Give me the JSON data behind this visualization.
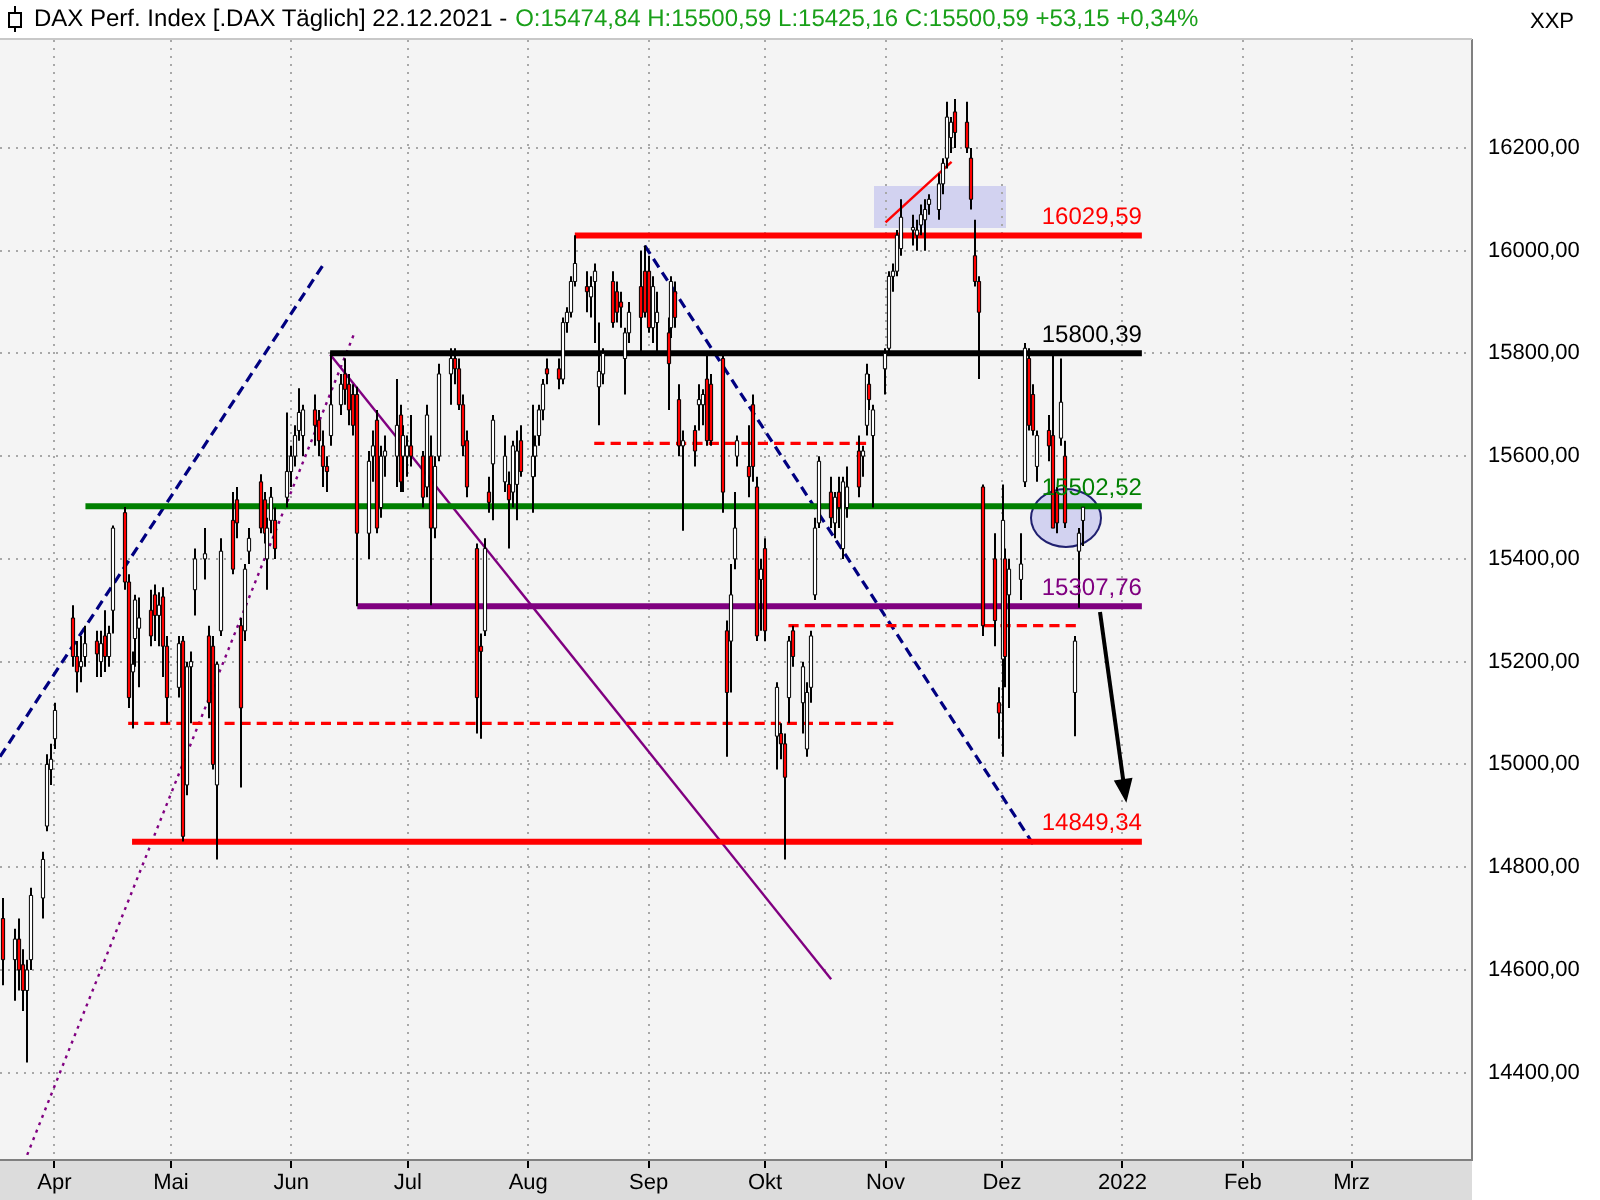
{
  "chart_data": {
    "type": "candlestick",
    "title": "DAX Perf. Index [.DAX Täglich] 22.12.2021 -",
    "subtitle": "O:15474,84 H:15500,59 L:15425,16 C:15500,59 +53,15 +0,34%",
    "ylabel": "XXP",
    "x": [
      "2021-03-19",
      "2021-03-22",
      "2021-03-23",
      "2021-03-24",
      "2021-03-25",
      "2021-03-26",
      "2021-03-29",
      "2021-03-30",
      "2021-03-31",
      "2021-04-01",
      "2021-04-06",
      "2021-04-07",
      "2021-04-08",
      "2021-04-09",
      "2021-04-12",
      "2021-04-13",
      "2021-04-14",
      "2021-04-15",
      "2021-04-16",
      "2021-04-19",
      "2021-04-20",
      "2021-04-21",
      "2021-04-22",
      "2021-04-23",
      "2021-04-26",
      "2021-04-27",
      "2021-04-28",
      "2021-04-29",
      "2021-04-30",
      "2021-05-03",
      "2021-05-04",
      "2021-05-05",
      "2021-05-06",
      "2021-05-07",
      "2021-05-10",
      "2021-05-11",
      "2021-05-12",
      "2021-05-13",
      "2021-05-14",
      "2021-05-17",
      "2021-05-18",
      "2021-05-19",
      "2021-05-20",
      "2021-05-21",
      "2021-05-24",
      "2021-05-25",
      "2021-05-26",
      "2021-05-27",
      "2021-05-28",
      "2021-05-31",
      "2021-06-01",
      "2021-06-02",
      "2021-06-03",
      "2021-06-04",
      "2021-06-07",
      "2021-06-08",
      "2021-06-09",
      "2021-06-10",
      "2021-06-11",
      "2021-06-14",
      "2021-06-15",
      "2021-06-16",
      "2021-06-17",
      "2021-06-18",
      "2021-06-21",
      "2021-06-22",
      "2021-06-23",
      "2021-06-24",
      "2021-06-25",
      "2021-06-28",
      "2021-06-29",
      "2021-06-30",
      "2021-07-01",
      "2021-07-02",
      "2021-07-05",
      "2021-07-06",
      "2021-07-07",
      "2021-07-08",
      "2021-07-09",
      "2021-07-12",
      "2021-07-13",
      "2021-07-14",
      "2021-07-15",
      "2021-07-16",
      "2021-07-19",
      "2021-07-20",
      "2021-07-21",
      "2021-07-22",
      "2021-07-23",
      "2021-07-26",
      "2021-07-27",
      "2021-07-28",
      "2021-07-29",
      "2021-07-30",
      "2021-08-02",
      "2021-08-03",
      "2021-08-04",
      "2021-08-05",
      "2021-08-06",
      "2021-08-09",
      "2021-08-10",
      "2021-08-11",
      "2021-08-12",
      "2021-08-13",
      "2021-08-16",
      "2021-08-17",
      "2021-08-18",
      "2021-08-19",
      "2021-08-20",
      "2021-08-23",
      "2021-08-24",
      "2021-08-25",
      "2021-08-26",
      "2021-08-27",
      "2021-08-30",
      "2021-08-31",
      "2021-09-01",
      "2021-09-02",
      "2021-09-03",
      "2021-09-06",
      "2021-09-07",
      "2021-09-08",
      "2021-09-09",
      "2021-09-10",
      "2021-09-13",
      "2021-09-14",
      "2021-09-15",
      "2021-09-16",
      "2021-09-17",
      "2021-09-20",
      "2021-09-21",
      "2021-09-22",
      "2021-09-23",
      "2021-09-24",
      "2021-09-27",
      "2021-09-28",
      "2021-09-29",
      "2021-09-30",
      "2021-10-01",
      "2021-10-04",
      "2021-10-05",
      "2021-10-06",
      "2021-10-07",
      "2021-10-08",
      "2021-10-11",
      "2021-10-12",
      "2021-10-13",
      "2021-10-14",
      "2021-10-15",
      "2021-10-18",
      "2021-10-19",
      "2021-10-20",
      "2021-10-21",
      "2021-10-22",
      "2021-10-25",
      "2021-10-26",
      "2021-10-27",
      "2021-10-28",
      "2021-10-29",
      "2021-11-01",
      "2021-11-02",
      "2021-11-03",
      "2021-11-04",
      "2021-11-05",
      "2021-11-08",
      "2021-11-09",
      "2021-11-10",
      "2021-11-11",
      "2021-11-12",
      "2021-11-15",
      "2021-11-16",
      "2021-11-17",
      "2021-11-18",
      "2021-11-19",
      "2021-11-22",
      "2021-11-23",
      "2021-11-24",
      "2021-11-25",
      "2021-11-26",
      "2021-11-29",
      "2021-11-30",
      "2021-12-01",
      "2021-12-02",
      "2021-12-03",
      "2021-12-06",
      "2021-12-07",
      "2021-12-08",
      "2021-12-09",
      "2021-12-10",
      "2021-12-13",
      "2021-12-14",
      "2021-12-15",
      "2021-12-16",
      "2021-12-17",
      "2021-12-20",
      "2021-12-21",
      "2021-12-22"
    ],
    "ohlc": [
      [
        14700,
        14740,
        14570,
        14620
      ],
      [
        14620,
        14680,
        14540,
        14660
      ],
      [
        14660,
        14700,
        14560,
        14600
      ],
      [
        14610,
        14640,
        14520,
        14560
      ],
      [
        14560,
        14620,
        14420,
        14600
      ],
      [
        14620,
        14760,
        14600,
        14745
      ],
      [
        14740,
        14830,
        14700,
        14815
      ],
      [
        14880,
        15020,
        14870,
        15000
      ],
      [
        14990,
        15040,
        14960,
        15010
      ],
      [
        15050,
        15120,
        15030,
        15105
      ],
      [
        15285,
        15310,
        15190,
        15210
      ],
      [
        15210,
        15240,
        15140,
        15180
      ],
      [
        15190,
        15250,
        15160,
        15200
      ],
      [
        15210,
        15270,
        15190,
        15235
      ],
      [
        15240,
        15260,
        15170,
        15215
      ],
      [
        15200,
        15260,
        15170,
        15235
      ],
      [
        15250,
        15300,
        15180,
        15210
      ],
      [
        15210,
        15270,
        15190,
        15255
      ],
      [
        15300,
        15465,
        15255,
        15460
      ],
      [
        15490,
        15501,
        15340,
        15355
      ],
      [
        15355,
        15370,
        15110,
        15130
      ],
      [
        15180,
        15220,
        15070,
        15195
      ],
      [
        15245,
        15330,
        15190,
        15320
      ],
      [
        15265,
        15325,
        15150,
        15285
      ],
      [
        15300,
        15340,
        15230,
        15250
      ],
      [
        15330,
        15350,
        15240,
        15290
      ],
      [
        15290,
        15335,
        15230,
        15310
      ],
      [
        15326,
        15345,
        15170,
        15230
      ],
      [
        15230,
        15250,
        15080,
        15130
      ],
      [
        15150,
        15250,
        15130,
        15235
      ],
      [
        15240,
        15250,
        14850,
        14860
      ],
      [
        14960,
        15200,
        14940,
        15190
      ],
      [
        15190,
        15220,
        15080,
        15200
      ],
      [
        15340,
        15420,
        15290,
        15400
      ],
      [
        15400,
        15460,
        15360,
        15410
      ],
      [
        15250,
        15270,
        15090,
        15120
      ],
      [
        15230,
        15250,
        14990,
        15000
      ],
      [
        14960,
        15200,
        14815,
        15195
      ],
      [
        15260,
        15440,
        15250,
        15415
      ],
      [
        15475,
        15530,
        15370,
        15380
      ],
      [
        15515,
        15540,
        15440,
        15470
      ],
      [
        15270,
        15285,
        14955,
        15110
      ],
      [
        15260,
        15390,
        15240,
        15380
      ],
      [
        15415,
        15460,
        15390,
        15440
      ],
      [
        15550,
        15565,
        15450,
        15460
      ],
      [
        15515,
        15530,
        15430,
        15450
      ],
      [
        15400,
        15480,
        15340,
        15460
      ],
      [
        15475,
        15540,
        15450,
        15520
      ],
      [
        15475,
        15500,
        15400,
        15420
      ],
      [
        15520,
        15685,
        15500,
        15570
      ],
      [
        15570,
        15620,
        15540,
        15600
      ],
      [
        15600,
        15660,
        15580,
        15640
      ],
      [
        15650,
        15732,
        15630,
        15685
      ],
      [
        15640,
        15700,
        15600,
        15690
      ],
      [
        15690,
        15720,
        15620,
        15660
      ],
      [
        15670,
        15690,
        15600,
        15630
      ],
      [
        15620,
        15650,
        15540,
        15580
      ],
      [
        15580,
        15600,
        15530,
        15570
      ],
      [
        15640,
        15803,
        15620,
        15700
      ],
      [
        15700,
        15760,
        15680,
        15740
      ],
      [
        15760,
        15790,
        15700,
        15730
      ],
      [
        15740,
        15760,
        15660,
        15690
      ],
      [
        15720,
        15740,
        15640,
        15660
      ],
      [
        15720,
        15735,
        15308,
        15450
      ],
      [
        15450,
        15610,
        15400,
        15590
      ],
      [
        15600,
        15650,
        15550,
        15620
      ],
      [
        15670,
        15690,
        15450,
        15460
      ],
      [
        15500,
        15620,
        15480,
        15600
      ],
      [
        15600,
        15640,
        15560,
        15610
      ],
      [
        15600,
        15750,
        15540,
        15660
      ],
      [
        15680,
        15700,
        15530,
        15550
      ],
      [
        15600,
        15660,
        15530,
        15640
      ],
      [
        15600,
        15640,
        15560,
        15620
      ],
      [
        15620,
        15680,
        15580,
        15600
      ],
      [
        15600,
        15610,
        15500,
        15520
      ],
      [
        15540,
        15700,
        15520,
        15680
      ],
      [
        15600,
        15640,
        15310,
        15460
      ],
      [
        15460,
        15600,
        15440,
        15580
      ],
      [
        15600,
        15780,
        15590,
        15760
      ],
      [
        15760,
        15810,
        15700,
        15790
      ],
      [
        15790,
        15810,
        15740,
        15770
      ],
      [
        15770,
        15790,
        15690,
        15700
      ],
      [
        15700,
        15720,
        15600,
        15620
      ],
      [
        15630,
        15650,
        15520,
        15540
      ],
      [
        15420,
        15430,
        15060,
        15130
      ],
      [
        15230,
        15255,
        15050,
        15220
      ],
      [
        15260,
        15440,
        15250,
        15420
      ],
      [
        15530,
        15560,
        15490,
        15510
      ],
      [
        15585,
        15680,
        15475,
        15670
      ],
      [
        15550,
        15640,
        15530,
        15600
      ],
      [
        15545,
        15570,
        15420,
        15515
      ],
      [
        15530,
        15630,
        15500,
        15620
      ],
      [
        15545,
        15650,
        15475,
        15610
      ],
      [
        15630,
        15660,
        15560,
        15570
      ],
      [
        15560,
        15700,
        15490,
        15600
      ],
      [
        15600,
        15640,
        15560,
        15620
      ],
      [
        15640,
        15700,
        15620,
        15690
      ],
      [
        15690,
        15750,
        15670,
        15740
      ],
      [
        15770,
        15790,
        15740,
        15760
      ],
      [
        15770,
        15790,
        15730,
        15750
      ],
      [
        15750,
        15870,
        15740,
        15860
      ],
      [
        15860,
        15890,
        15840,
        15880
      ],
      [
        15880,
        15950,
        15870,
        15940
      ],
      [
        15940,
        16030,
        15930,
        15975
      ],
      [
        15930,
        15960,
        15880,
        15920
      ],
      [
        15910,
        15950,
        15870,
        15930
      ],
      [
        15940,
        15975,
        15820,
        15960
      ],
      [
        15735,
        15860,
        15660,
        15765
      ],
      [
        15760,
        15810,
        15740,
        15800
      ],
      [
        15940,
        15960,
        15850,
        15860
      ],
      [
        15920,
        15940,
        15860,
        15880
      ],
      [
        15900,
        15920,
        15850,
        15890
      ],
      [
        15790,
        15850,
        15720,
        15840
      ],
      [
        15840,
        15900,
        15820,
        15880
      ],
      [
        15930,
        16000,
        15800,
        15870
      ],
      [
        15960,
        16010,
        15870,
        15880
      ],
      [
        15960,
        15990,
        15840,
        15850
      ],
      [
        15850,
        15950,
        15820,
        15930
      ],
      [
        15860,
        15920,
        15800,
        15880
      ],
      [
        15840,
        15870,
        15690,
        15780
      ],
      [
        15850,
        15950,
        15830,
        15940
      ],
      [
        15920,
        15940,
        15850,
        15870
      ],
      [
        15710,
        15740,
        15600,
        15620
      ],
      [
        15620,
        15650,
        15455,
        15630
      ],
      [
        15650,
        15660,
        15580,
        15610
      ],
      [
        15700,
        15740,
        15650,
        15710
      ],
      [
        15700,
        15730,
        15660,
        15720
      ],
      [
        15750,
        15800,
        15620,
        15630
      ],
      [
        15740,
        15760,
        15620,
        15630
      ],
      [
        15790,
        15800,
        15490,
        15530
      ],
      [
        15260,
        15280,
        15015,
        15140
      ],
      [
        15240,
        15390,
        15140,
        15330
      ],
      [
        15400,
        15530,
        15380,
        15460
      ],
      [
        15600,
        15640,
        15580,
        15630
      ],
      [
        15580,
        15660,
        15520,
        15560
      ],
      [
        15700,
        15720,
        15550,
        15580
      ],
      [
        15540,
        15560,
        15240,
        15250
      ],
      [
        15360,
        15400,
        15260,
        15380
      ],
      [
        15420,
        15440,
        15240,
        15260
      ],
      [
        15055,
        15160,
        14990,
        15150
      ],
      [
        15060,
        15080,
        15010,
        15040
      ],
      [
        15040,
        15060,
        14815,
        14975
      ],
      [
        15130,
        15250,
        15080,
        15240
      ],
      [
        15260,
        15270,
        15190,
        15210
      ],
      [
        15120,
        15200,
        15060,
        15190
      ],
      [
        15030,
        15160,
        15015,
        15140
      ],
      [
        15150,
        15260,
        15120,
        15250
      ],
      [
        15330,
        15480,
        15320,
        15460
      ],
      [
        15470,
        15600,
        15460,
        15590
      ],
      [
        15530,
        15560,
        15460,
        15480
      ],
      [
        15470,
        15530,
        15440,
        15520
      ],
      [
        15530,
        15560,
        15460,
        15500
      ],
      [
        15420,
        15560,
        15400,
        15550
      ],
      [
        15500,
        15580,
        15480,
        15540
      ],
      [
        15610,
        15640,
        15520,
        15540
      ],
      [
        15600,
        15620,
        15560,
        15610
      ],
      [
        15660,
        15780,
        15640,
        15760
      ],
      [
        15740,
        15760,
        15690,
        15710
      ],
      [
        15640,
        15700,
        15500,
        15690
      ],
      [
        15770,
        15810,
        15720,
        15800
      ],
      [
        15810,
        15960,
        15800,
        15950
      ],
      [
        15950,
        15975,
        15920,
        15960
      ],
      [
        15960,
        16040,
        15950,
        16030
      ],
      [
        16004,
        16100,
        15990,
        16065
      ],
      [
        16040,
        16070,
        16010,
        16045
      ],
      [
        16030,
        16060,
        16000,
        16040
      ],
      [
        16050,
        16090,
        16030,
        16070
      ],
      [
        16060,
        16100,
        16000,
        16080
      ],
      [
        16090,
        16110,
        16070,
        16100
      ],
      [
        16080,
        16150,
        16060,
        16130
      ],
      [
        16130,
        16180,
        16110,
        16170
      ],
      [
        16180,
        16290,
        16160,
        16260
      ],
      [
        16220,
        16260,
        16190,
        16250
      ],
      [
        16270,
        16295,
        16200,
        16230
      ],
      [
        16250,
        16290,
        16190,
        16200
      ],
      [
        16180,
        16200,
        16080,
        16100
      ],
      [
        15990,
        16060,
        15930,
        15940
      ],
      [
        15940,
        15950,
        15750,
        15880
      ],
      [
        15540,
        15545,
        15250,
        15270
      ],
      [
        15400,
        15450,
        15230,
        15280
      ],
      [
        15120,
        15150,
        15050,
        15100
      ],
      [
        15205,
        15545,
        15015,
        15475
      ],
      [
        15400,
        15420,
        15150,
        15210
      ],
      [
        15330,
        15400,
        15110,
        15380
      ],
      [
        15360,
        15450,
        15320,
        15390
      ],
      [
        15550,
        15820,
        15540,
        15810
      ],
      [
        15790,
        15810,
        15650,
        15660
      ],
      [
        15720,
        15740,
        15640,
        15650
      ],
      [
        15580,
        15650,
        15550,
        15640
      ],
      [
        15650,
        15680,
        15590,
        15620
      ],
      [
        15640,
        15800,
        15460,
        15460
      ],
      [
        15530,
        15540,
        15450,
        15470
      ],
      [
        15635,
        15790,
        15620,
        15705
      ],
      [
        15600,
        15630,
        15460,
        15470
      ],
      [
        15140,
        15250,
        15055,
        15240
      ],
      [
        15415,
        15460,
        15305,
        15450
      ],
      [
        15474.84,
        15500.59,
        15425.16,
        15500.59
      ]
    ],
    "series": [
      {
        "type": "line",
        "x": [
          "2021-08-13",
          "2022-01-06"
        ],
        "values": [
          16029.59,
          16029.59
        ],
        "color": "#ff0000",
        "value_labels": [
          null,
          "16029,59"
        ]
      },
      {
        "type": "line",
        "x": [
          "2021-06-11",
          "2022-01-06"
        ],
        "values": [
          15800.39,
          15800.39
        ],
        "color": "#000000",
        "value_labels": [
          null,
          "15800,39"
        ]
      },
      {
        "type": "line",
        "x": [
          "2021-04-09",
          "2022-01-06"
        ],
        "values": [
          15502.52,
          15502.52
        ],
        "color": "#008000",
        "value_labels": [
          null,
          "15502,52"
        ]
      },
      {
        "type": "line",
        "x": [
          "2021-06-18",
          "2022-01-06"
        ],
        "values": [
          15307.76,
          15307.76
        ],
        "color": "#800080",
        "value_labels": [
          null,
          "15307,76"
        ]
      },
      {
        "type": "line",
        "x": [
          "2021-04-21",
          "2022-01-06"
        ],
        "values": [
          14849.34,
          14849.34
        ],
        "color": "#ff0000",
        "value_labels": [
          null,
          "14849,34"
        ]
      },
      {
        "type": "line",
        "x": [
          "2021-04-20",
          "2021-11-03"
        ],
        "values": [
          15080,
          15080
        ],
        "color": "#ff0000",
        "line_style": "dashed"
      },
      {
        "type": "line",
        "x": [
          "2021-08-18",
          "2021-10-27"
        ],
        "values": [
          15625,
          15625
        ],
        "color": "#ff0000",
        "line_style": "dashed"
      },
      {
        "type": "line",
        "x": [
          "2021-10-07",
          "2021-12-20"
        ],
        "values": [
          15270,
          15270
        ],
        "color": "#ff0000",
        "line_style": "dashed"
      },
      {
        "type": "line",
        "x": [
          "2021-03-18",
          "2021-06-09"
        ],
        "values": [
          15015,
          15970
        ],
        "color": "#000080",
        "line_style": "dashed"
      },
      {
        "type": "line",
        "x": [
          "2021-03-25",
          "2021-06-17"
        ],
        "values": [
          14240,
          15835
        ],
        "color": "#800080",
        "line_style": "dotted"
      },
      {
        "type": "line",
        "x": [
          "2021-06-11",
          "2021-10-18"
        ],
        "values": [
          15798,
          14582
        ],
        "color": "#800080"
      },
      {
        "type": "line",
        "x": [
          "2021-08-31",
          "2021-12-09"
        ],
        "values": [
          16010,
          14845
        ],
        "color": "#000080",
        "line_style": "dashed"
      },
      {
        "type": "line",
        "x": [
          "2021-11-01",
          "2021-11-18"
        ],
        "values": [
          16055,
          16173
        ],
        "color": "#ff0000"
      }
    ],
    "xlim": [
      "2021-03-18",
      "2022-04-01"
    ],
    "xticks": [
      {
        "value": "2021-04",
        "label": "Apr"
      },
      {
        "value": "2021-05",
        "label": "Mai"
      },
      {
        "value": "2021-06",
        "label": "Jun"
      },
      {
        "value": "2021-07",
        "label": "Jul"
      },
      {
        "value": "2021-08",
        "label": "Aug"
      },
      {
        "value": "2021-09",
        "label": "Sep"
      },
      {
        "value": "2021-10",
        "label": "Okt"
      },
      {
        "value": "2021-11",
        "label": "Nov"
      },
      {
        "value": "2021-12",
        "label": "Dez"
      },
      {
        "value": "2022",
        "label": "2022"
      },
      {
        "value": "2022-02",
        "label": "Feb"
      },
      {
        "value": "2022-03",
        "label": "Mrz"
      }
    ],
    "ylim": [
      14230,
      16410
    ],
    "yticks": [
      {
        "value": 14400,
        "label": "14400,00"
      },
      {
        "value": 14600,
        "label": "14600,00"
      },
      {
        "value": 14800,
        "label": "14800,00"
      },
      {
        "value": 15000,
        "label": "15000,00"
      },
      {
        "value": 15200,
        "label": "15200,00"
      },
      {
        "value": 15400,
        "label": "15400,00"
      },
      {
        "value": 15600,
        "label": "15600,00"
      },
      {
        "value": 15800,
        "label": "15800,00"
      },
      {
        "value": 16000,
        "label": "16000,00"
      },
      {
        "value": 16200,
        "label": "16200,00"
      }
    ],
    "grid": true
  }
}
